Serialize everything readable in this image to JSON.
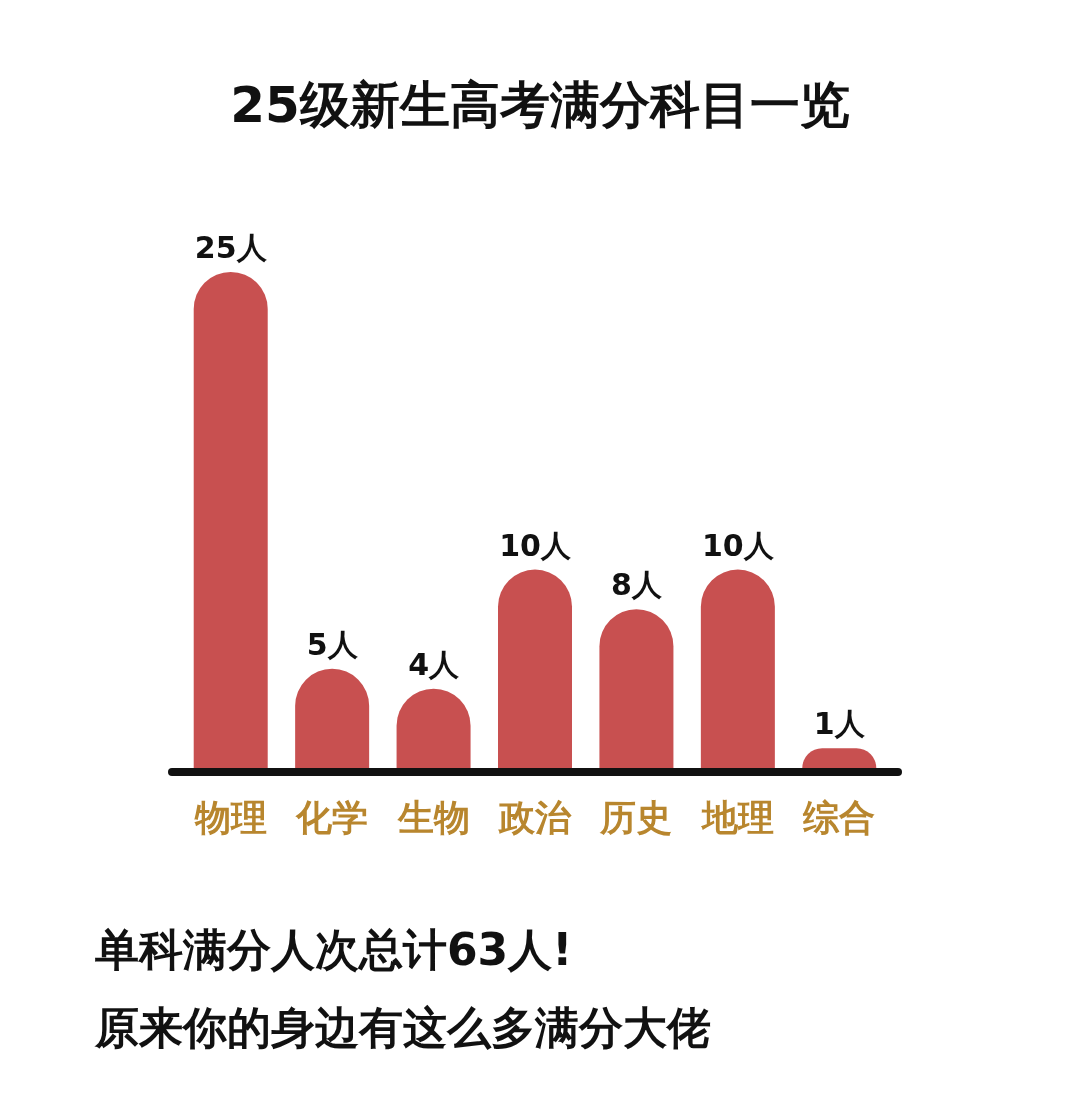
{
  "chart_data": {
    "type": "bar",
    "title": "25级新生高考满分科目一览",
    "categories": [
      "物理",
      "化学",
      "生物",
      "政治",
      "历史",
      "地理",
      "综合"
    ],
    "values": [
      25,
      5,
      4,
      10,
      8,
      10,
      1
    ],
    "value_labels": [
      "25人",
      "5人",
      "4人",
      "10人",
      "8人",
      "10人",
      "1人"
    ],
    "color": "#c85050",
    "annotations": [
      "单科满分人次总计63人!",
      "原来你的身边有这么多满分大佬"
    ]
  }
}
